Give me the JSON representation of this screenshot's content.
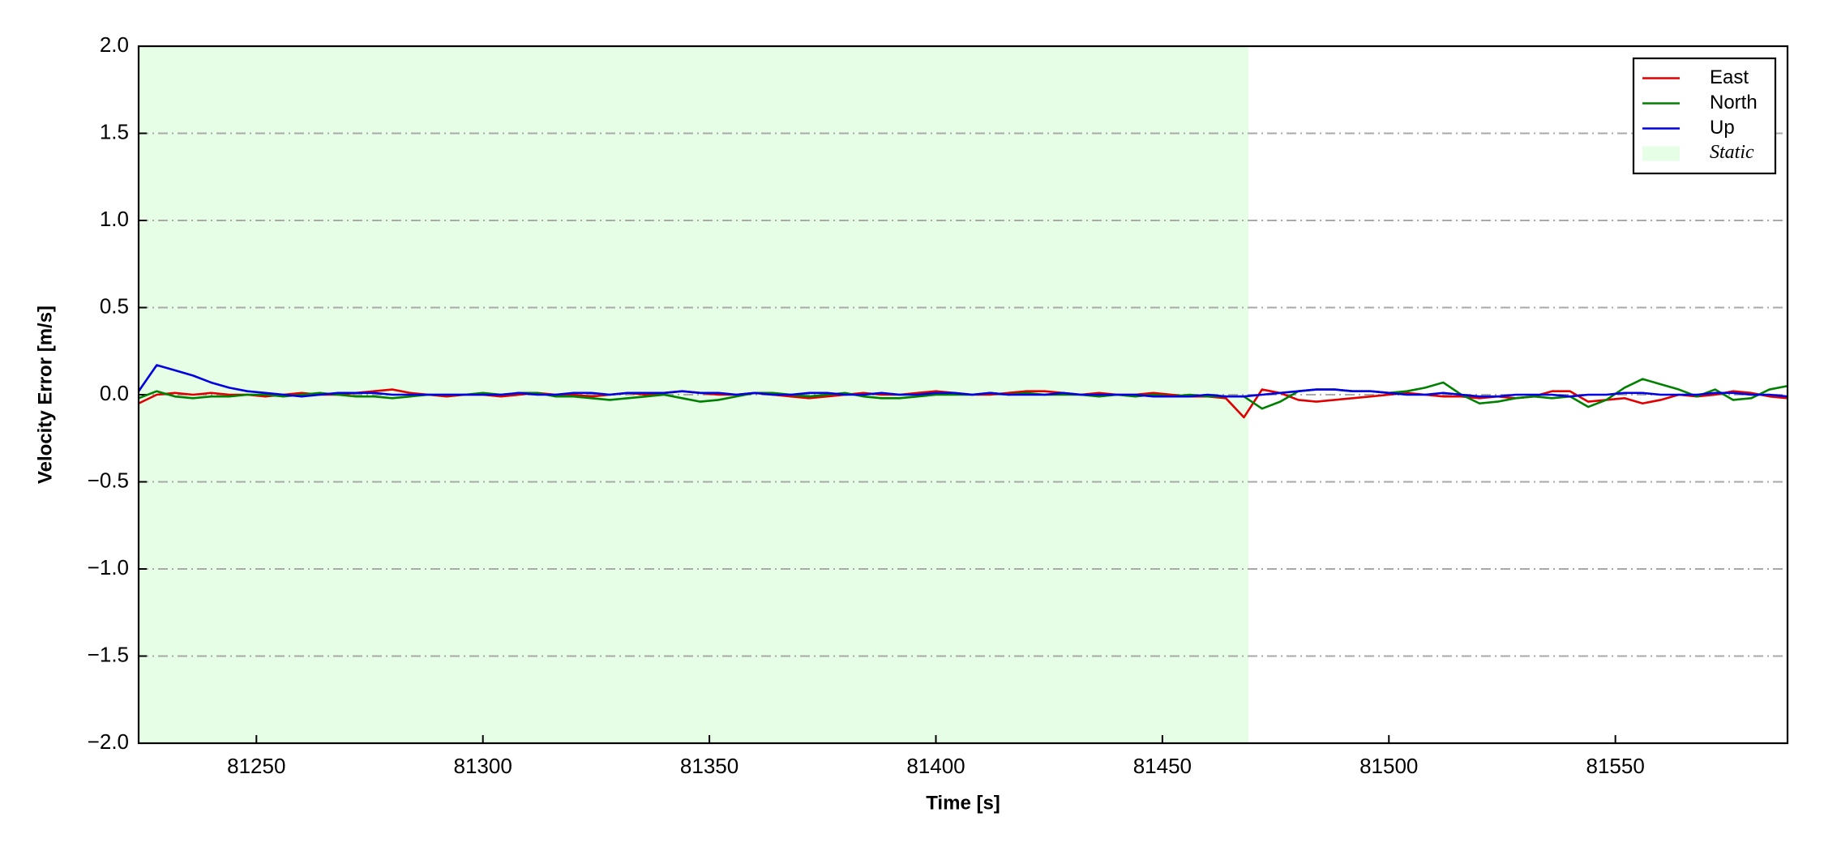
{
  "chart_data": {
    "type": "line",
    "x_label": "Time [s]",
    "y_label": "Velocity Error [m/s]",
    "xlim": [
      81224,
      81588
    ],
    "ylim": [
      -2,
      2
    ],
    "xticks": [
      81250,
      81300,
      81350,
      81400,
      81450,
      81500,
      81550
    ],
    "yticks": [
      {
        "value": -2,
        "label": "−2.0"
      },
      {
        "value": -1.5,
        "label": "−1.5"
      },
      {
        "value": -1,
        "label": "−1.0"
      },
      {
        "value": -0.5,
        "label": "−0.5"
      },
      {
        "value": 0,
        "label": "0.0"
      },
      {
        "value": 0.5,
        "label": "0.5"
      },
      {
        "value": 1,
        "label": "1.0"
      },
      {
        "value": 1.5,
        "label": "1.5"
      },
      {
        "value": 2,
        "label": "2.0"
      }
    ],
    "grid": true,
    "legend_position": "upper right",
    "shaded_spans": [
      {
        "name": "Static",
        "color": "#e6fde6",
        "x0": 81224,
        "x1": 81469
      }
    ],
    "x": [
      81224,
      81228,
      81232,
      81236,
      81240,
      81244,
      81248,
      81252,
      81256,
      81260,
      81264,
      81268,
      81272,
      81276,
      81280,
      81284,
      81288,
      81292,
      81296,
      81300,
      81304,
      81308,
      81312,
      81316,
      81320,
      81324,
      81328,
      81332,
      81336,
      81340,
      81344,
      81348,
      81352,
      81356,
      81360,
      81364,
      81368,
      81372,
      81376,
      81380,
      81384,
      81388,
      81392,
      81396,
      81400,
      81404,
      81408,
      81412,
      81416,
      81420,
      81424,
      81428,
      81432,
      81436,
      81440,
      81444,
      81448,
      81452,
      81456,
      81460,
      81464,
      81468,
      81472,
      81476,
      81480,
      81484,
      81488,
      81492,
      81496,
      81500,
      81504,
      81508,
      81512,
      81516,
      81520,
      81524,
      81528,
      81532,
      81536,
      81540,
      81544,
      81548,
      81552,
      81556,
      81560,
      81564,
      81568,
      81572,
      81576,
      81580,
      81584,
      81588
    ],
    "series": [
      {
        "name": "East",
        "color": "#e00000",
        "values": [
          -0.05,
          0.0,
          0.01,
          0.0,
          0.01,
          0.0,
          0.0,
          -0.01,
          0.0,
          0.01,
          0.0,
          0.0,
          0.01,
          0.02,
          0.03,
          0.01,
          0.0,
          -0.01,
          0.0,
          0.0,
          -0.01,
          0.0,
          0.01,
          0.0,
          0.0,
          -0.01,
          0.0,
          0.01,
          0.0,
          0.01,
          0.02,
          0.01,
          0.0,
          0.0,
          0.01,
          0.0,
          -0.01,
          -0.02,
          -0.01,
          0.0,
          0.01,
          0.0,
          0.0,
          0.01,
          0.02,
          0.01,
          0.0,
          0.0,
          0.01,
          0.02,
          0.02,
          0.01,
          0.0,
          0.01,
          0.0,
          0.0,
          0.01,
          0.0,
          -0.01,
          -0.01,
          -0.02,
          -0.13,
          0.03,
          0.01,
          -0.03,
          -0.04,
          -0.03,
          -0.02,
          -0.01,
          0.0,
          0.01,
          0.0,
          -0.01,
          -0.01,
          -0.02,
          -0.01,
          -0.02,
          -0.01,
          0.02,
          0.02,
          -0.04,
          -0.03,
          -0.02,
          -0.05,
          -0.03,
          0.0,
          -0.01,
          0.0,
          0.02,
          0.01,
          -0.01,
          -0.02
        ]
      },
      {
        "name": "North",
        "color": "#008000",
        "values": [
          -0.02,
          0.02,
          -0.01,
          -0.02,
          -0.01,
          -0.01,
          0.0,
          0.0,
          -0.01,
          0.0,
          0.01,
          0.0,
          -0.01,
          -0.01,
          -0.02,
          -0.01,
          0.0,
          0.0,
          0.0,
          0.01,
          0.0,
          0.01,
          0.01,
          -0.01,
          -0.01,
          -0.02,
          -0.03,
          -0.02,
          -0.01,
          0.0,
          -0.02,
          -0.04,
          -0.03,
          -0.01,
          0.01,
          0.01,
          0.0,
          -0.01,
          0.0,
          0.01,
          -0.01,
          -0.02,
          -0.02,
          -0.01,
          0.0,
          0.0,
          0.0,
          0.01,
          0.0,
          0.01,
          0.0,
          0.0,
          0.0,
          -0.01,
          0.0,
          -0.01,
          0.0,
          -0.01,
          0.0,
          -0.01,
          -0.01,
          -0.01,
          -0.08,
          -0.04,
          0.02,
          0.03,
          0.03,
          0.02,
          0.02,
          0.01,
          0.02,
          0.04,
          0.07,
          0.0,
          -0.05,
          -0.04,
          -0.02,
          -0.01,
          -0.02,
          -0.01,
          -0.07,
          -0.03,
          0.04,
          0.09,
          0.06,
          0.03,
          -0.01,
          0.03,
          -0.03,
          -0.02,
          0.03,
          0.05
        ]
      },
      {
        "name": "Up",
        "color": "#0000e0",
        "values": [
          0.02,
          0.17,
          0.14,
          0.11,
          0.07,
          0.04,
          0.02,
          0.01,
          0.0,
          -0.01,
          0.0,
          0.01,
          0.01,
          0.01,
          0.0,
          0.0,
          0.0,
          0.0,
          0.0,
          0.0,
          0.0,
          0.01,
          0.0,
          0.0,
          0.01,
          0.01,
          0.0,
          0.01,
          0.01,
          0.01,
          0.02,
          0.01,
          0.01,
          0.0,
          0.01,
          0.0,
          0.0,
          0.01,
          0.01,
          0.0,
          0.0,
          0.01,
          0.0,
          0.0,
          0.01,
          0.01,
          0.0,
          0.01,
          0.0,
          0.0,
          0.0,
          0.01,
          0.0,
          0.0,
          0.0,
          0.0,
          -0.01,
          -0.01,
          -0.01,
          0.0,
          -0.01,
          -0.01,
          0.0,
          0.01,
          0.02,
          0.03,
          0.03,
          0.02,
          0.02,
          0.01,
          0.0,
          0.0,
          0.01,
          0.0,
          -0.01,
          -0.01,
          0.0,
          0.0,
          0.0,
          -0.01,
          0.0,
          0.0,
          0.01,
          0.01,
          0.0,
          0.0,
          0.0,
          0.01,
          0.01,
          0.0,
          0.0,
          -0.01
        ]
      }
    ]
  }
}
